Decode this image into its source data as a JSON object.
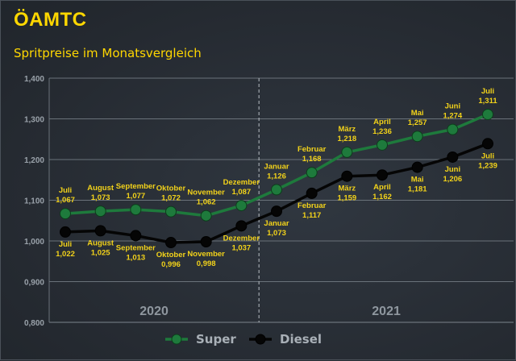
{
  "header": {
    "logo_text": "ÖAMTC",
    "subtitle": "Spritpreise im Monatsvergleich"
  },
  "colors": {
    "accent": "#ffd700",
    "super": "#1e7a3c",
    "diesel": "#050505",
    "label": "#f2d21a"
  },
  "chart_data": {
    "type": "line",
    "title": "Spritpreise im Monatsvergleich",
    "xlabel": "",
    "ylabel": "",
    "ylim": [
      0.8,
      1.4
    ],
    "yticks": [
      "0,800",
      "0,900",
      "1,000",
      "1,100",
      "1,200",
      "1,300",
      "1,400"
    ],
    "categories": [
      "Juli",
      "August",
      "September",
      "Oktober",
      "November",
      "Dezember",
      "Januar",
      "Februar",
      "März",
      "April",
      "Mai",
      "Juni",
      "Juli"
    ],
    "year_labels": [
      "2020",
      "2021"
    ],
    "grid": true,
    "legend_position": "bottom",
    "series": [
      {
        "name": "Super",
        "values": [
          1.067,
          1.073,
          1.077,
          1.072,
          1.062,
          1.087,
          1.126,
          1.168,
          1.218,
          1.236,
          1.257,
          1.274,
          1.311
        ],
        "value_labels": [
          "1,067",
          "1,073",
          "1,077",
          "1,072",
          "1,062",
          "1,087",
          "1,126",
          "1,168",
          "1,218",
          "1,236",
          "1,257",
          "1,274",
          "1,311"
        ]
      },
      {
        "name": "Diesel",
        "values": [
          1.022,
          1.025,
          1.013,
          0.996,
          0.998,
          1.037,
          1.073,
          1.117,
          1.159,
          1.162,
          1.181,
          1.206,
          1.239
        ],
        "value_labels": [
          "1,022",
          "1,025",
          "1,013",
          "0,996",
          "0,998",
          "1,037",
          "1,073",
          "1,117",
          "1,159",
          "1,162",
          "1,181",
          "1,206",
          "1,239"
        ]
      }
    ]
  }
}
